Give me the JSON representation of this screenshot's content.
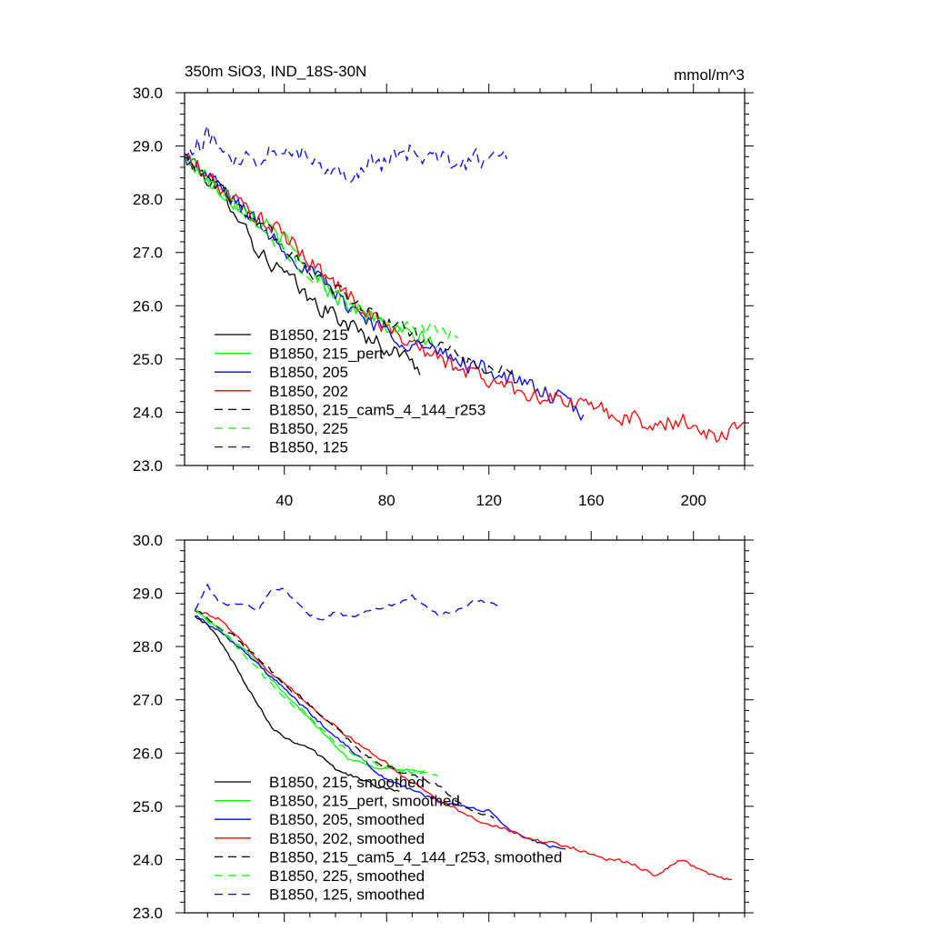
{
  "chart_data": [
    {
      "type": "line",
      "title": "350m SiO3, IND_18S-30N",
      "units": "mmol/m^3",
      "xlabel": "",
      "ylabel": "",
      "xlim": [
        1,
        220
      ],
      "ylim": [
        23.0,
        30.0
      ],
      "x_ticks": [
        "40",
        "80",
        "120",
        "160",
        "200"
      ],
      "y_ticks": [
        "30.0",
        "29.0",
        "28.0",
        "27.0",
        "26.0",
        "25.0",
        "24.0",
        "23.0"
      ],
      "legend_position": "bottom-left",
      "grid": false,
      "series": [
        {
          "name": "B1850, 215",
          "color": "#000000",
          "dash": "solid",
          "noise": 0.15,
          "x": [
            1,
            10,
            20,
            30,
            40,
            50,
            60,
            70,
            80,
            90,
            93
          ],
          "y": [
            28.8,
            28.4,
            27.9,
            27.0,
            26.6,
            26.1,
            25.8,
            25.5,
            25.2,
            25.0,
            24.8
          ]
        },
        {
          "name": "B1850, 215_pert",
          "color": "#00ff00",
          "dash": "solid",
          "noise": 0.15,
          "x": [
            1,
            10,
            20,
            30,
            40,
            50,
            60,
            70,
            80,
            90,
            100
          ],
          "y": [
            28.8,
            28.4,
            28.0,
            27.6,
            27.2,
            26.7,
            26.2,
            25.9,
            25.6,
            25.4,
            25.3
          ]
        },
        {
          "name": "B1850, 205",
          "color": "#0000ff",
          "dash": "solid",
          "noise": 0.15,
          "x": [
            1,
            20,
            40,
            60,
            80,
            100,
            120,
            130,
            140,
            150,
            157
          ],
          "y": [
            28.8,
            28.0,
            27.1,
            26.2,
            25.5,
            25.1,
            24.8,
            24.6,
            24.4,
            24.2,
            23.9
          ]
        },
        {
          "name": "B1850, 202",
          "color": "#ff0000",
          "dash": "solid",
          "noise": 0.15,
          "x": [
            1,
            20,
            40,
            60,
            80,
            100,
            120,
            140,
            160,
            180,
            200,
            210,
            220
          ],
          "y": [
            28.8,
            28.0,
            27.3,
            26.4,
            25.6,
            25.0,
            24.6,
            24.3,
            24.1,
            23.8,
            23.8,
            23.5,
            23.9
          ]
        },
        {
          "name": "B1850, 215_cam5_4_144_r253",
          "color": "#000000",
          "dash": "dashed",
          "noise": 0.12,
          "x": [
            1,
            20,
            40,
            60,
            80,
            100,
            110,
            120,
            130
          ],
          "y": [
            28.8,
            28.0,
            27.1,
            26.3,
            25.7,
            25.3,
            25.0,
            24.8,
            24.7
          ]
        },
        {
          "name": "B1850, 225",
          "color": "#00ff00",
          "dash": "dashed",
          "noise": 0.12,
          "x": [
            1,
            20,
            40,
            60,
            80,
            100,
            108
          ],
          "y": [
            28.8,
            28.0,
            27.0,
            26.2,
            25.7,
            25.5,
            25.4
          ]
        },
        {
          "name": "B1850, 125",
          "color": "#0000ff",
          "dash": "dashed",
          "noise": 0.18,
          "x": [
            1,
            10,
            20,
            30,
            40,
            50,
            60,
            70,
            80,
            90,
            100,
            110,
            120,
            127
          ],
          "y": [
            28.7,
            29.2,
            28.8,
            28.8,
            29.1,
            28.8,
            28.5,
            28.6,
            28.7,
            28.9,
            28.7,
            28.7,
            28.8,
            28.8
          ]
        }
      ]
    },
    {
      "type": "line",
      "title": "",
      "units": "",
      "xlabel": "",
      "ylabel": "",
      "xlim": [
        1,
        220
      ],
      "ylim": [
        23.0,
        30.0
      ],
      "x_ticks": [],
      "y_ticks": [
        "30.0",
        "29.0",
        "28.0",
        "27.0",
        "26.0",
        "25.0",
        "24.0",
        "23.0"
      ],
      "legend_position": "bottom-left",
      "grid": false,
      "series": [
        {
          "name": "B1850, 215, smoothed",
          "color": "#000000",
          "dash": "solid",
          "noise": 0.03,
          "x": [
            5,
            10,
            15,
            20,
            25,
            30,
            35,
            40,
            45,
            50,
            55,
            60,
            65,
            70,
            75,
            80,
            85
          ],
          "y": [
            28.6,
            28.4,
            28.1,
            27.7,
            27.3,
            26.9,
            26.5,
            26.3,
            26.2,
            26.1,
            25.9,
            25.7,
            25.6,
            25.5,
            25.4,
            25.35,
            25.3
          ]
        },
        {
          "name": "B1850, 215_pert, smoothed",
          "color": "#00ff00",
          "dash": "solid",
          "noise": 0.03,
          "x": [
            5,
            15,
            25,
            35,
            45,
            55,
            65,
            75,
            85,
            95
          ],
          "y": [
            28.7,
            28.3,
            27.9,
            27.4,
            26.9,
            26.4,
            25.9,
            25.75,
            25.7,
            25.65
          ]
        },
        {
          "name": "B1850, 205, smoothed",
          "color": "#0000ff",
          "dash": "solid",
          "noise": 0.03,
          "x": [
            5,
            20,
            40,
            60,
            70,
            80,
            90,
            100,
            110,
            120,
            130,
            140,
            150
          ],
          "y": [
            28.6,
            28.1,
            27.2,
            26.3,
            25.9,
            25.5,
            25.3,
            25.1,
            25.0,
            24.9,
            24.5,
            24.3,
            24.2
          ]
        },
        {
          "name": "B1850, 202, smoothed",
          "color": "#ff0000",
          "dash": "solid",
          "noise": 0.03,
          "x": [
            5,
            15,
            25,
            35,
            45,
            55,
            65,
            75,
            85,
            95,
            105,
            115,
            125,
            135,
            145,
            155,
            165,
            175,
            185,
            195,
            205,
            215
          ],
          "y": [
            28.7,
            28.5,
            28.0,
            27.5,
            27.1,
            26.7,
            26.3,
            26.0,
            25.6,
            25.3,
            25.0,
            24.75,
            24.6,
            24.4,
            24.3,
            24.2,
            24.0,
            23.95,
            23.7,
            24.0,
            23.75,
            23.6
          ]
        },
        {
          "name": "B1850, 215_cam5_4_144_r253, smoothed",
          "color": "#000000",
          "dash": "dashed",
          "noise": 0.03,
          "x": [
            5,
            20,
            40,
            60,
            70,
            80,
            90,
            100,
            110,
            122
          ],
          "y": [
            28.7,
            28.2,
            27.3,
            26.5,
            26.0,
            25.75,
            25.6,
            25.4,
            25.0,
            24.8
          ]
        },
        {
          "name": "B1850, 225, smoothed",
          "color": "#00ff00",
          "dash": "dashed",
          "noise": 0.03,
          "x": [
            5,
            20,
            40,
            50,
            60,
            70,
            80,
            90,
            100
          ],
          "y": [
            28.7,
            28.1,
            27.0,
            26.7,
            26.2,
            25.9,
            25.7,
            25.65,
            25.6
          ]
        },
        {
          "name": "B1850, 125, smoothed",
          "color": "#0000ff",
          "dash": "dashed",
          "noise": 0.03,
          "x": [
            5,
            10,
            15,
            20,
            30,
            35,
            40,
            45,
            50,
            55,
            60,
            65,
            70,
            75,
            80,
            85,
            90,
            95,
            100,
            105,
            110,
            115,
            120,
            125
          ],
          "y": [
            28.7,
            29.15,
            28.8,
            28.8,
            28.7,
            29.05,
            29.1,
            28.8,
            28.6,
            28.5,
            28.65,
            28.55,
            28.6,
            28.7,
            28.75,
            28.8,
            28.95,
            28.75,
            28.6,
            28.65,
            28.7,
            28.9,
            28.8,
            28.8
          ]
        }
      ]
    }
  ]
}
